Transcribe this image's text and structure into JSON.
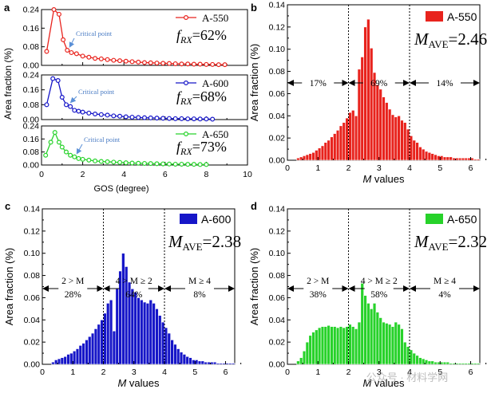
{
  "figure": {
    "panel_a": {
      "letter": "a",
      "ylabel": "Area fraction (%)",
      "xlabel": "GOS (degree)",
      "xticks": [
        "0",
        "2",
        "4",
        "6",
        "8",
        "10"
      ],
      "annotation": "Critical point",
      "subplots": [
        {
          "legend": "A-550",
          "frx_label": "f",
          "frx_sub": "RX",
          "frx_value": "=62%",
          "color": "#e8231d",
          "yticks": [
            "0.00",
            "0.08",
            "0.16",
            "0.24"
          ]
        },
        {
          "legend": "A-600",
          "frx_label": "f",
          "frx_sub": "RX",
          "frx_value": "=68%",
          "color": "#1616c8",
          "yticks": [
            "0.00",
            "0.08",
            "0.16",
            "0.24"
          ]
        },
        {
          "legend": "A-650",
          "frx_label": "f",
          "frx_sub": "RX",
          "frx_value": "=73%",
          "color": "#27d22a",
          "yticks": [
            "0.00",
            "0.08",
            "0.16",
            "0.24"
          ]
        }
      ]
    },
    "panel_b": {
      "letter": "b",
      "legend": "A-550",
      "mave_m": "M",
      "mave_sub": "AVE",
      "mave_value": "=2.46",
      "color": "#e8231d",
      "ylabel": "Area fraction (%)",
      "xlabel_m": "M",
      "xlabel_rest": " values",
      "yticks": [
        "0.00",
        "0.02",
        "0.04",
        "0.06",
        "0.08",
        "0.10",
        "0.12",
        "0.14"
      ],
      "xticks": [
        "0",
        "1",
        "2",
        "3",
        "4",
        "5",
        "6"
      ],
      "regions": [
        "17%",
        "69%",
        "14%"
      ]
    },
    "panel_c": {
      "letter": "c",
      "legend": "A-600",
      "mave_m": "M",
      "mave_sub": "AVE",
      "mave_value": "=2.38",
      "color": "#1616c8",
      "ylabel": "Area fraction (%)",
      "xlabel_m": "M",
      "xlabel_rest": " values",
      "yticks": [
        "0.00",
        "0.02",
        "0.04",
        "0.06",
        "0.08",
        "0.10",
        "0.12",
        "0.14"
      ],
      "xticks": [
        "0",
        "1",
        "2",
        "3",
        "4",
        "5",
        "6"
      ],
      "region_labels": [
        "2 > M",
        "4 > M ≥ 2",
        "M ≥ 4"
      ],
      "regions": [
        "28%",
        "64%",
        "8%"
      ]
    },
    "panel_d": {
      "letter": "d",
      "legend": "A-650",
      "mave_m": "M",
      "mave_sub": "AVE",
      "mave_value": "=2.32",
      "color": "#27d22a",
      "ylabel": "Area fraction (%)",
      "xlabel_m": "M",
      "xlabel_rest": " values",
      "yticks": [
        "0.00",
        "0.02",
        "0.04",
        "0.06",
        "0.08",
        "0.10",
        "0.12",
        "0.14"
      ],
      "xticks": [
        "0",
        "1",
        "2",
        "3",
        "4",
        "5",
        "6"
      ],
      "region_labels": [
        "2 > M",
        "4 > M ≥ 2",
        "M ≥ 4"
      ],
      "regions": [
        "38%",
        "58%",
        "4%"
      ]
    },
    "watermark": "公众号 · 材料学网"
  },
  "chart_data": [
    {
      "type": "line",
      "panel": "a",
      "xlabel": "GOS (degree)",
      "ylabel": "Area fraction (%)",
      "xlim": [
        0,
        10
      ],
      "ylim": [
        0,
        0.24
      ],
      "series": [
        {
          "name": "A-550",
          "x": [
            0.25,
            0.6,
            0.85,
            1.05,
            1.25,
            1.45,
            1.7,
            2.0,
            2.3,
            2.6,
            2.9,
            3.2,
            3.5,
            3.8,
            4.1,
            4.4,
            4.7,
            5.0,
            5.3,
            5.6,
            5.9,
            6.2,
            6.5,
            6.8,
            7.1,
            7.4,
            7.7,
            8.0,
            8.3,
            8.6,
            8.9
          ],
          "y": [
            0.06,
            0.24,
            0.22,
            0.11,
            0.065,
            0.055,
            0.05,
            0.04,
            0.035,
            0.03,
            0.028,
            0.025,
            0.022,
            0.02,
            0.018,
            0.016,
            0.014,
            0.012,
            0.011,
            0.01,
            0.009,
            0.008,
            0.007,
            0.006,
            0.006,
            0.005,
            0.005,
            0.004,
            0.004,
            0.003,
            0.003
          ]
        },
        {
          "name": "A-600",
          "x": [
            0.25,
            0.55,
            0.8,
            1.0,
            1.2,
            1.4,
            1.6,
            1.8,
            2.0,
            2.3,
            2.6,
            2.9,
            3.2,
            3.5,
            3.8,
            4.1,
            4.4,
            4.7,
            5.0,
            5.3,
            5.6,
            5.9,
            6.2,
            6.5,
            6.8,
            7.1,
            7.4,
            7.7,
            8.0,
            8.3
          ],
          "y": [
            0.08,
            0.22,
            0.21,
            0.12,
            0.08,
            0.07,
            0.05,
            0.045,
            0.04,
            0.035,
            0.03,
            0.027,
            0.024,
            0.02,
            0.018,
            0.015,
            0.013,
            0.011,
            0.01,
            0.009,
            0.008,
            0.007,
            0.006,
            0.005,
            0.005,
            0.004,
            0.004,
            0.003,
            0.003,
            0.002
          ]
        },
        {
          "name": "A-650",
          "x": [
            0.2,
            0.45,
            0.65,
            0.85,
            1.0,
            1.2,
            1.4,
            1.6,
            1.8,
            2.0,
            2.3,
            2.6,
            2.9,
            3.2,
            3.5,
            3.8,
            4.1,
            4.4,
            4.7,
            5.0,
            5.3,
            5.6,
            5.9,
            6.2,
            6.5,
            6.8,
            7.1,
            7.4,
            7.7,
            8.0
          ],
          "y": [
            0.06,
            0.14,
            0.2,
            0.14,
            0.11,
            0.08,
            0.06,
            0.05,
            0.04,
            0.035,
            0.03,
            0.025,
            0.022,
            0.02,
            0.018,
            0.016,
            0.014,
            0.012,
            0.011,
            0.01,
            0.009,
            0.008,
            0.007,
            0.006,
            0.005,
            0.005,
            0.004,
            0.004,
            0.003,
            0.003
          ]
        }
      ]
    },
    {
      "type": "bar",
      "panel": "b",
      "series_name": "A-550",
      "xlabel": "M values",
      "ylabel": "Area fraction (%)",
      "xlim": [
        0,
        6.3
      ],
      "ylim": [
        0,
        0.14
      ],
      "bin_width": 0.1,
      "bin_start": 0.3,
      "values": [
        0.002,
        0.003,
        0.004,
        0.005,
        0.006,
        0.007,
        0.009,
        0.011,
        0.013,
        0.016,
        0.018,
        0.021,
        0.024,
        0.027,
        0.031,
        0.034,
        0.038,
        0.043,
        0.045,
        0.04,
        0.082,
        0.093,
        0.12,
        0.127,
        0.101,
        0.079,
        0.068,
        0.064,
        0.057,
        0.052,
        0.046,
        0.041,
        0.039,
        0.04,
        0.036,
        0.034,
        0.028,
        0.022,
        0.018,
        0.016,
        0.012,
        0.01,
        0.008,
        0.007,
        0.006,
        0.005,
        0.004,
        0.004,
        0.003,
        0.003,
        0.003,
        0.002,
        0.002,
        0.002,
        0.002,
        0.002,
        0.002,
        0.002,
        0.001,
        0.001
      ]
    },
    {
      "type": "bar",
      "panel": "c",
      "series_name": "A-600",
      "xlabel": "M values",
      "ylabel": "Area fraction (%)",
      "xlim": [
        0,
        6.3
      ],
      "ylim": [
        0,
        0.14
      ],
      "bin_width": 0.1,
      "bin_start": 0.3,
      "values": [
        0.002,
        0.004,
        0.005,
        0.006,
        0.007,
        0.009,
        0.01,
        0.012,
        0.014,
        0.017,
        0.019,
        0.022,
        0.025,
        0.028,
        0.032,
        0.036,
        0.04,
        0.046,
        0.055,
        0.058,
        0.03,
        0.068,
        0.084,
        0.1,
        0.088,
        0.074,
        0.068,
        0.065,
        0.06,
        0.058,
        0.056,
        0.055,
        0.058,
        0.055,
        0.05,
        0.044,
        0.038,
        0.033,
        0.028,
        0.022,
        0.018,
        0.014,
        0.011,
        0.009,
        0.007,
        0.006,
        0.004,
        0.004,
        0.003,
        0.003,
        0.002,
        0.002,
        0.002,
        0.002,
        0.001,
        0.001,
        0.001,
        0.001,
        0.001,
        0.001
      ]
    },
    {
      "type": "bar",
      "panel": "d",
      "series_name": "A-650",
      "xlabel": "M values",
      "ylabel": "Area fraction (%)",
      "xlim": [
        0,
        6.3
      ],
      "ylim": [
        0,
        0.14
      ],
      "bin_width": 0.1,
      "bin_start": 0.3,
      "values": [
        0.003,
        0.006,
        0.012,
        0.02,
        0.026,
        0.029,
        0.031,
        0.033,
        0.034,
        0.034,
        0.035,
        0.034,
        0.034,
        0.033,
        0.034,
        0.033,
        0.034,
        0.036,
        0.034,
        0.032,
        0.038,
        0.073,
        0.062,
        0.055,
        0.05,
        0.055,
        0.047,
        0.042,
        0.038,
        0.037,
        0.036,
        0.034,
        0.038,
        0.036,
        0.032,
        0.02,
        0.016,
        0.013,
        0.01,
        0.008,
        0.006,
        0.005,
        0.004,
        0.003,
        0.003,
        0.002,
        0.002,
        0.002,
        0.002,
        0.002,
        0.001,
        0.001,
        0.001,
        0.001,
        0.001,
        0.001,
        0.001,
        0.001,
        0.001,
        0.001
      ]
    }
  ]
}
